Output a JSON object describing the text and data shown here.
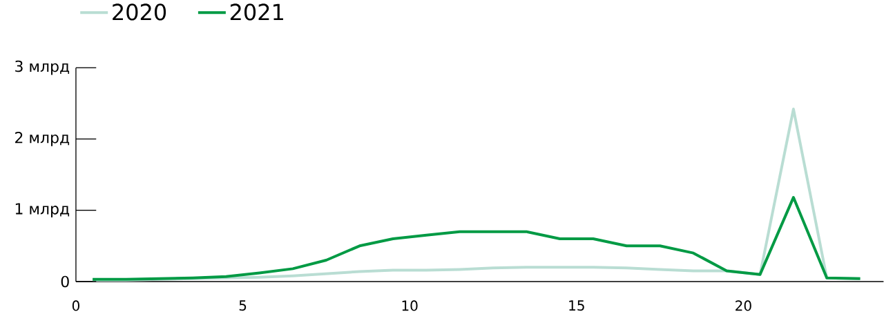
{
  "chart_data": {
    "type": "line",
    "x": [
      0.5,
      1.5,
      2.5,
      3.5,
      4.5,
      5.5,
      6.5,
      7.5,
      8.5,
      9.5,
      10.5,
      11.5,
      12.5,
      13.5,
      14.5,
      15.5,
      16.5,
      17.5,
      18.5,
      19.5,
      20.5,
      21.5,
      22.5,
      23.5
    ],
    "series": [
      {
        "name": "2020",
        "color": "#b9ddd3",
        "values": [
          0.02,
          0.02,
          0.03,
          0.04,
          0.05,
          0.06,
          0.08,
          0.11,
          0.14,
          0.16,
          0.16,
          0.17,
          0.19,
          0.2,
          0.2,
          0.2,
          0.19,
          0.17,
          0.15,
          0.15,
          0.1,
          2.42,
          0.05,
          0.04
        ]
      },
      {
        "name": "2021",
        "color": "#009a44",
        "values": [
          0.03,
          0.03,
          0.04,
          0.05,
          0.07,
          0.12,
          0.18,
          0.3,
          0.5,
          0.6,
          0.65,
          0.7,
          0.7,
          0.7,
          0.6,
          0.6,
          0.5,
          0.5,
          0.4,
          0.15,
          0.1,
          1.18,
          0.05,
          0.04
        ]
      }
    ],
    "xlim": [
      0,
      24.2
    ],
    "xticks": [
      0,
      5,
      10,
      15,
      20
    ],
    "ylim": [
      0,
      3
    ],
    "yticks": [
      0,
      {
        "value": 1,
        "label": "1 млрд"
      },
      {
        "value": 2,
        "label": "2 млрд"
      },
      {
        "value": 3,
        "label": "3 млрд"
      }
    ],
    "legend": "top left",
    "marker": "none",
    "line_style": "solid"
  }
}
